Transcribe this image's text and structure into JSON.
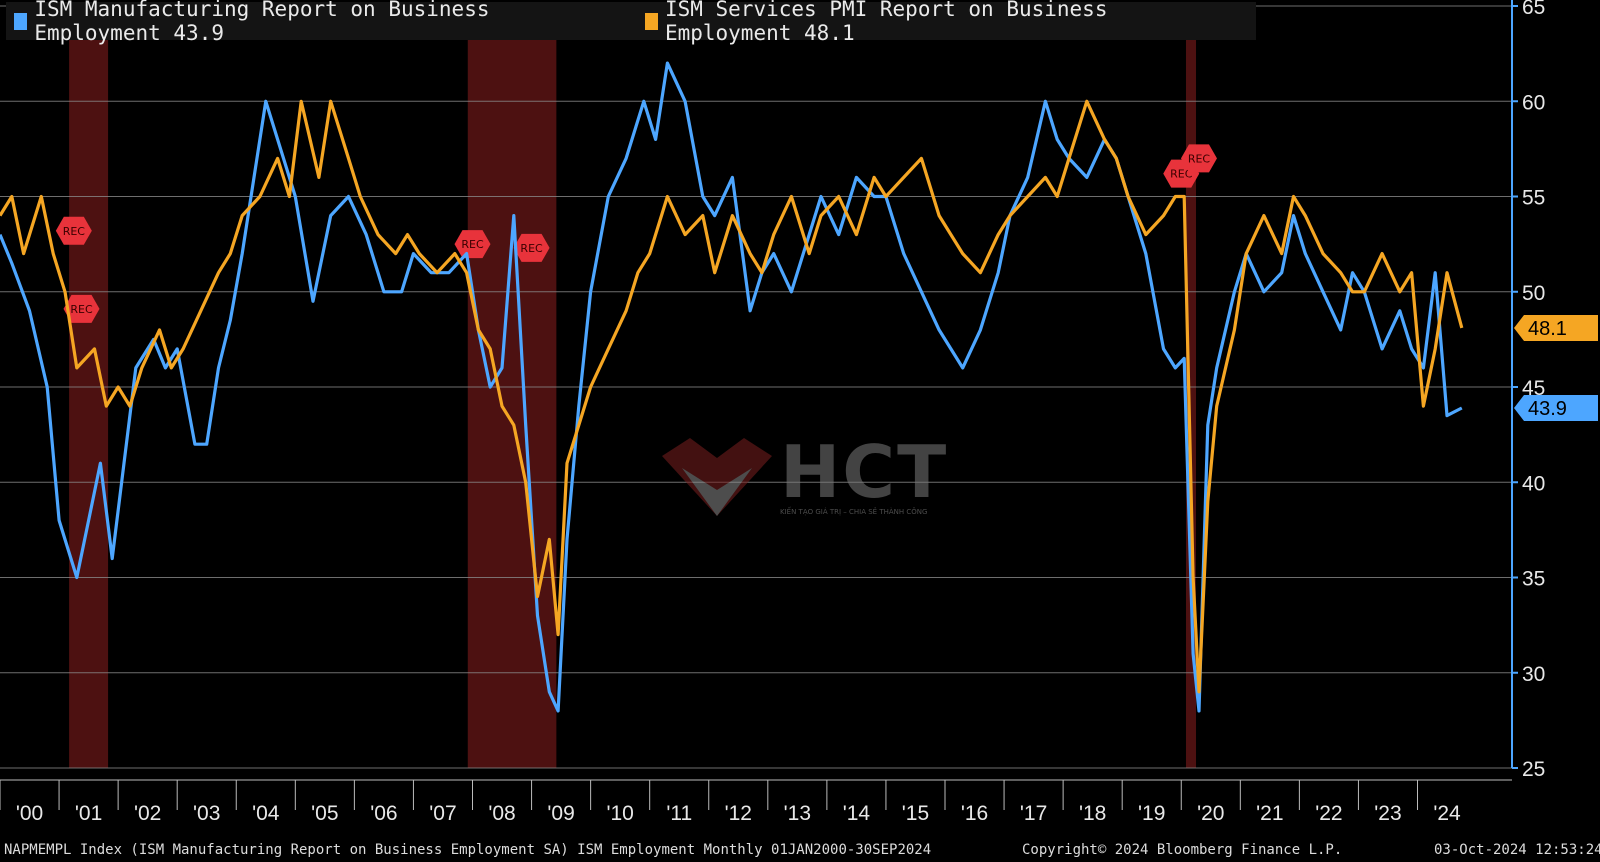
{
  "chart_data": {
    "type": "line",
    "legend_position": "top-left",
    "y_axis_position": "right",
    "ylim": [
      25,
      65
    ],
    "y_ticks": [
      25,
      30,
      35,
      40,
      45,
      50,
      55,
      60,
      65
    ],
    "x_start_year": 2000,
    "x_end_year": 2024.75,
    "x_tick_labels": [
      "'00",
      "'01",
      "'02",
      "'03",
      "'04",
      "'05",
      "'06",
      "'07",
      "'08",
      "'09",
      "'10",
      "'11",
      "'12",
      "'13",
      "'14",
      "'15",
      "'16",
      "'17",
      "'18",
      "'19",
      "'20",
      "'21",
      "'22",
      "'23",
      "'24"
    ],
    "grid": true,
    "recession_periods": [
      [
        2001.17,
        2001.83
      ],
      [
        2007.92,
        2009.42
      ],
      [
        2020.08,
        2020.25
      ]
    ],
    "recession_label": "REC",
    "series": [
      {
        "name": "ISM Manufacturing Report on Business Employment",
        "last_value": 43.9,
        "last_value_label": "43.9",
        "color": "#4da6ff",
        "points": [
          [
            2000,
            53
          ],
          [
            2000.2,
            51.5
          ],
          [
            2000.5,
            49
          ],
          [
            2000.8,
            45
          ],
          [
            2001,
            38
          ],
          [
            2001.3,
            35
          ],
          [
            2001.5,
            38
          ],
          [
            2001.7,
            41
          ],
          [
            2001.9,
            36
          ],
          [
            2002.1,
            41
          ],
          [
            2002.3,
            46
          ],
          [
            2002.6,
            47.5
          ],
          [
            2002.8,
            46
          ],
          [
            2003,
            47
          ],
          [
            2003.3,
            42
          ],
          [
            2003.5,
            42
          ],
          [
            2003.7,
            46
          ],
          [
            2003.9,
            48.5
          ],
          [
            2004.1,
            52
          ],
          [
            2004.3,
            56
          ],
          [
            2004.5,
            60
          ],
          [
            2004.8,
            57
          ],
          [
            2005,
            55
          ],
          [
            2005.3,
            49.5
          ],
          [
            2005.6,
            54
          ],
          [
            2005.9,
            55
          ],
          [
            2006.2,
            53
          ],
          [
            2006.5,
            50
          ],
          [
            2006.8,
            50
          ],
          [
            2007,
            52
          ],
          [
            2007.3,
            51
          ],
          [
            2007.6,
            51
          ],
          [
            2007.9,
            52
          ],
          [
            2008.1,
            48
          ],
          [
            2008.3,
            45
          ],
          [
            2008.5,
            46
          ],
          [
            2008.7,
            54
          ],
          [
            2008.9,
            43
          ],
          [
            2009.1,
            33
          ],
          [
            2009.3,
            29
          ],
          [
            2009.45,
            28
          ],
          [
            2009.6,
            37
          ],
          [
            2009.8,
            44
          ],
          [
            2010,
            50
          ],
          [
            2010.3,
            55
          ],
          [
            2010.6,
            57
          ],
          [
            2010.9,
            60
          ],
          [
            2011.1,
            58
          ],
          [
            2011.3,
            62
          ],
          [
            2011.6,
            60
          ],
          [
            2011.9,
            55
          ],
          [
            2012.1,
            54
          ],
          [
            2012.4,
            56
          ],
          [
            2012.7,
            49
          ],
          [
            2012.9,
            51
          ],
          [
            2013.1,
            52
          ],
          [
            2013.4,
            50
          ],
          [
            2013.7,
            53
          ],
          [
            2013.9,
            55
          ],
          [
            2014.2,
            53
          ],
          [
            2014.5,
            56
          ],
          [
            2014.8,
            55
          ],
          [
            2015,
            55
          ],
          [
            2015.3,
            52
          ],
          [
            2015.6,
            50
          ],
          [
            2015.9,
            48
          ],
          [
            2016.1,
            47
          ],
          [
            2016.3,
            46
          ],
          [
            2016.6,
            48
          ],
          [
            2016.9,
            51
          ],
          [
            2017.1,
            54
          ],
          [
            2017.4,
            56
          ],
          [
            2017.7,
            60
          ],
          [
            2017.9,
            58
          ],
          [
            2018.1,
            57
          ],
          [
            2018.4,
            56
          ],
          [
            2018.7,
            58
          ],
          [
            2018.9,
            57
          ],
          [
            2019.1,
            55
          ],
          [
            2019.4,
            52
          ],
          [
            2019.7,
            47
          ],
          [
            2019.9,
            46
          ],
          [
            2020.05,
            46.5
          ],
          [
            2020.2,
            31
          ],
          [
            2020.3,
            28
          ],
          [
            2020.45,
            43
          ],
          [
            2020.6,
            46
          ],
          [
            2020.9,
            50
          ],
          [
            2021.1,
            52
          ],
          [
            2021.4,
            50
          ],
          [
            2021.7,
            51
          ],
          [
            2021.9,
            54
          ],
          [
            2022.1,
            52
          ],
          [
            2022.4,
            50
          ],
          [
            2022.7,
            48
          ],
          [
            2022.9,
            51
          ],
          [
            2023.1,
            50
          ],
          [
            2023.4,
            47
          ],
          [
            2023.7,
            49
          ],
          [
            2023.9,
            47
          ],
          [
            2024.1,
            46
          ],
          [
            2024.3,
            51
          ],
          [
            2024.5,
            43.5
          ],
          [
            2024.75,
            43.9
          ]
        ]
      },
      {
        "name": "ISM Services PMI Report on Business Employment",
        "last_value": 48.1,
        "last_value_label": "48.1",
        "color": "#f5a623",
        "points": [
          [
            2000,
            54
          ],
          [
            2000.2,
            55
          ],
          [
            2000.4,
            52
          ],
          [
            2000.7,
            55
          ],
          [
            2000.9,
            52
          ],
          [
            2001.1,
            50
          ],
          [
            2001.3,
            46
          ],
          [
            2001.6,
            47
          ],
          [
            2001.8,
            44
          ],
          [
            2002,
            45
          ],
          [
            2002.2,
            44
          ],
          [
            2002.4,
            46
          ],
          [
            2002.7,
            48
          ],
          [
            2002.9,
            46
          ],
          [
            2003.1,
            47
          ],
          [
            2003.4,
            49
          ],
          [
            2003.7,
            51
          ],
          [
            2003.9,
            52
          ],
          [
            2004.1,
            54
          ],
          [
            2004.4,
            55
          ],
          [
            2004.7,
            57
          ],
          [
            2004.9,
            55
          ],
          [
            2005.1,
            60
          ],
          [
            2005.4,
            56
          ],
          [
            2005.6,
            60
          ],
          [
            2005.9,
            57
          ],
          [
            2006.1,
            55
          ],
          [
            2006.4,
            53
          ],
          [
            2006.7,
            52
          ],
          [
            2006.9,
            53
          ],
          [
            2007.1,
            52
          ],
          [
            2007.4,
            51
          ],
          [
            2007.7,
            52
          ],
          [
            2007.9,
            51
          ],
          [
            2008.1,
            48
          ],
          [
            2008.3,
            47
          ],
          [
            2008.5,
            44
          ],
          [
            2008.7,
            43
          ],
          [
            2008.9,
            40
          ],
          [
            2009.1,
            34
          ],
          [
            2009.3,
            37
          ],
          [
            2009.45,
            32
          ],
          [
            2009.6,
            41
          ],
          [
            2009.8,
            43
          ],
          [
            2010,
            45
          ],
          [
            2010.3,
            47
          ],
          [
            2010.6,
            49
          ],
          [
            2010.8,
            51
          ],
          [
            2011,
            52
          ],
          [
            2011.3,
            55
          ],
          [
            2011.6,
            53
          ],
          [
            2011.9,
            54
          ],
          [
            2012.1,
            51
          ],
          [
            2012.4,
            54
          ],
          [
            2012.7,
            52
          ],
          [
            2012.9,
            51
          ],
          [
            2013.1,
            53
          ],
          [
            2013.4,
            55
          ],
          [
            2013.7,
            52
          ],
          [
            2013.9,
            54
          ],
          [
            2014.2,
            55
          ],
          [
            2014.5,
            53
          ],
          [
            2014.8,
            56
          ],
          [
            2015,
            55
          ],
          [
            2015.3,
            56
          ],
          [
            2015.6,
            57
          ],
          [
            2015.9,
            54
          ],
          [
            2016.1,
            53
          ],
          [
            2016.3,
            52
          ],
          [
            2016.6,
            51
          ],
          [
            2016.9,
            53
          ],
          [
            2017.1,
            54
          ],
          [
            2017.4,
            55
          ],
          [
            2017.7,
            56
          ],
          [
            2017.9,
            55
          ],
          [
            2018.1,
            57
          ],
          [
            2018.4,
            60
          ],
          [
            2018.7,
            58
          ],
          [
            2018.9,
            57
          ],
          [
            2019.1,
            55
          ],
          [
            2019.4,
            53
          ],
          [
            2019.7,
            54
          ],
          [
            2019.9,
            55
          ],
          [
            2020.05,
            55
          ],
          [
            2020.2,
            35
          ],
          [
            2020.3,
            29
          ],
          [
            2020.45,
            39
          ],
          [
            2020.6,
            44
          ],
          [
            2020.9,
            48
          ],
          [
            2021.1,
            52
          ],
          [
            2021.4,
            54
          ],
          [
            2021.7,
            52
          ],
          [
            2021.9,
            55
          ],
          [
            2022.1,
            54
          ],
          [
            2022.4,
            52
          ],
          [
            2022.7,
            51
          ],
          [
            2022.9,
            50
          ],
          [
            2023.1,
            50
          ],
          [
            2023.4,
            52
          ],
          [
            2023.7,
            50
          ],
          [
            2023.9,
            51
          ],
          [
            2024.1,
            44
          ],
          [
            2024.3,
            47
          ],
          [
            2024.5,
            51
          ],
          [
            2024.75,
            48.1
          ]
        ]
      }
    ]
  },
  "legend": {
    "manufacturing_label": "ISM Manufacturing Report on Business Employment 43.9",
    "services_label": "ISM Services PMI Report on Business Employment 48.1"
  },
  "footer": {
    "left": "NAPMEMPL Index (ISM Manufacturing Report on Business Employment SA) ISM Employment  Monthly 01JAN2000-30SEP2024",
    "center": "Copyright© 2024 Bloomberg Finance L.P.",
    "right": "03-Oct-2024 12:53:24"
  },
  "watermark": {
    "text": "HCT",
    "tagline": "KIẾN TẠO GIÁ TRỊ – CHIA SẺ THÀNH CÔNG"
  },
  "colors": {
    "background": "#000000",
    "grid": "#8a8a8a",
    "recession_fill": "#5a1414",
    "rec_badge": "#e8333b",
    "axis": "#4da6ff"
  }
}
